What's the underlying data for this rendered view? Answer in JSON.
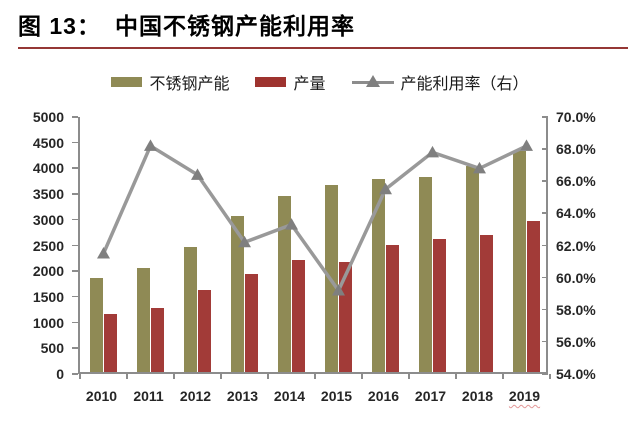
{
  "header": {
    "figure_label": "图 13：",
    "title": "中国不锈钢产能利用率",
    "underline_color": "#953735"
  },
  "legend": {
    "items": [
      {
        "label": "不锈钢产能",
        "marker": "bar",
        "color": "#8F8A55"
      },
      {
        "label": "产量",
        "marker": "bar",
        "color": "#9E332F"
      },
      {
        "label": "产能利用率（右）",
        "marker": "line-triangle",
        "color": "#8c8c8c"
      }
    ]
  },
  "chart_data": {
    "type": "bar",
    "subtype": "grouped bars with secondary-axis line overlay",
    "title": "中国不锈钢产能利用率",
    "categories": [
      "2010",
      "2011",
      "2012",
      "2013",
      "2014",
      "2015",
      "2016",
      "2017",
      "2018",
      "2019"
    ],
    "series": [
      {
        "name": "不锈钢产能",
        "type": "bar",
        "axis": "left",
        "color": "#8F8A55",
        "values": [
          1830,
          2030,
          2430,
          3030,
          3420,
          3630,
          3750,
          3800,
          4000,
          4300
        ]
      },
      {
        "name": "产量",
        "type": "bar",
        "axis": "left",
        "color": "#A23B38",
        "values": [
          1120,
          1250,
          1600,
          1900,
          2170,
          2150,
          2475,
          2580,
          2670,
          2940
        ]
      },
      {
        "name": "产能利用率（右）",
        "type": "line",
        "axis": "right",
        "line_color": "#999999",
        "marker": "triangle",
        "marker_color": "#7f7f7f",
        "values": [
          61.5,
          68.2,
          66.4,
          62.2,
          63.3,
          59.2,
          65.5,
          67.8,
          66.8,
          68.2
        ]
      }
    ],
    "left_axis": {
      "min": 0,
      "max": 5000,
      "step": 500,
      "tick_labels": [
        "5000",
        "4500",
        "4000",
        "3500",
        "3000",
        "2500",
        "2000",
        "1500",
        "1000",
        "500",
        "0"
      ]
    },
    "right_axis": {
      "min": 54,
      "max": 70,
      "step": 2,
      "tick_labels": [
        "70.0%",
        "68.0%",
        "66.0%",
        "64.0%",
        "62.0%",
        "60.0%",
        "58.0%",
        "56.0%",
        "54.0%"
      ]
    },
    "grid": false,
    "legend_position": "top"
  }
}
